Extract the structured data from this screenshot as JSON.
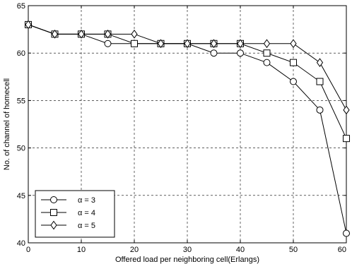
{
  "chart_data": {
    "type": "line",
    "title": "",
    "xlabel": "Offered load per neighboring cell(Erlangs)",
    "ylabel": "No. of channel of homecell",
    "xlim": [
      0,
      60
    ],
    "ylim": [
      40,
      65
    ],
    "xticks": [
      0,
      10,
      20,
      30,
      40,
      50,
      60
    ],
    "yticks": [
      40,
      45,
      50,
      55,
      60,
      65
    ],
    "grid": true,
    "grid_style": "dashed",
    "legend_position": "bottom-left",
    "x": [
      0,
      5,
      10,
      15,
      20,
      25,
      30,
      35,
      40,
      45,
      50,
      55,
      60
    ],
    "series": [
      {
        "name": "α = 3",
        "marker": "circle",
        "values": [
          63,
          62,
          62,
          61,
          61,
          61,
          61,
          60,
          60,
          59,
          57,
          54,
          41
        ]
      },
      {
        "name": "α = 4",
        "marker": "square",
        "values": [
          63,
          62,
          62,
          62,
          61,
          61,
          61,
          61,
          61,
          60,
          59,
          57,
          51
        ]
      },
      {
        "name": "α = 5",
        "marker": "diamond",
        "values": [
          63,
          62,
          62,
          62,
          62,
          61,
          61,
          61,
          61,
          61,
          61,
          59,
          54
        ]
      }
    ],
    "line_color": "#000000"
  }
}
